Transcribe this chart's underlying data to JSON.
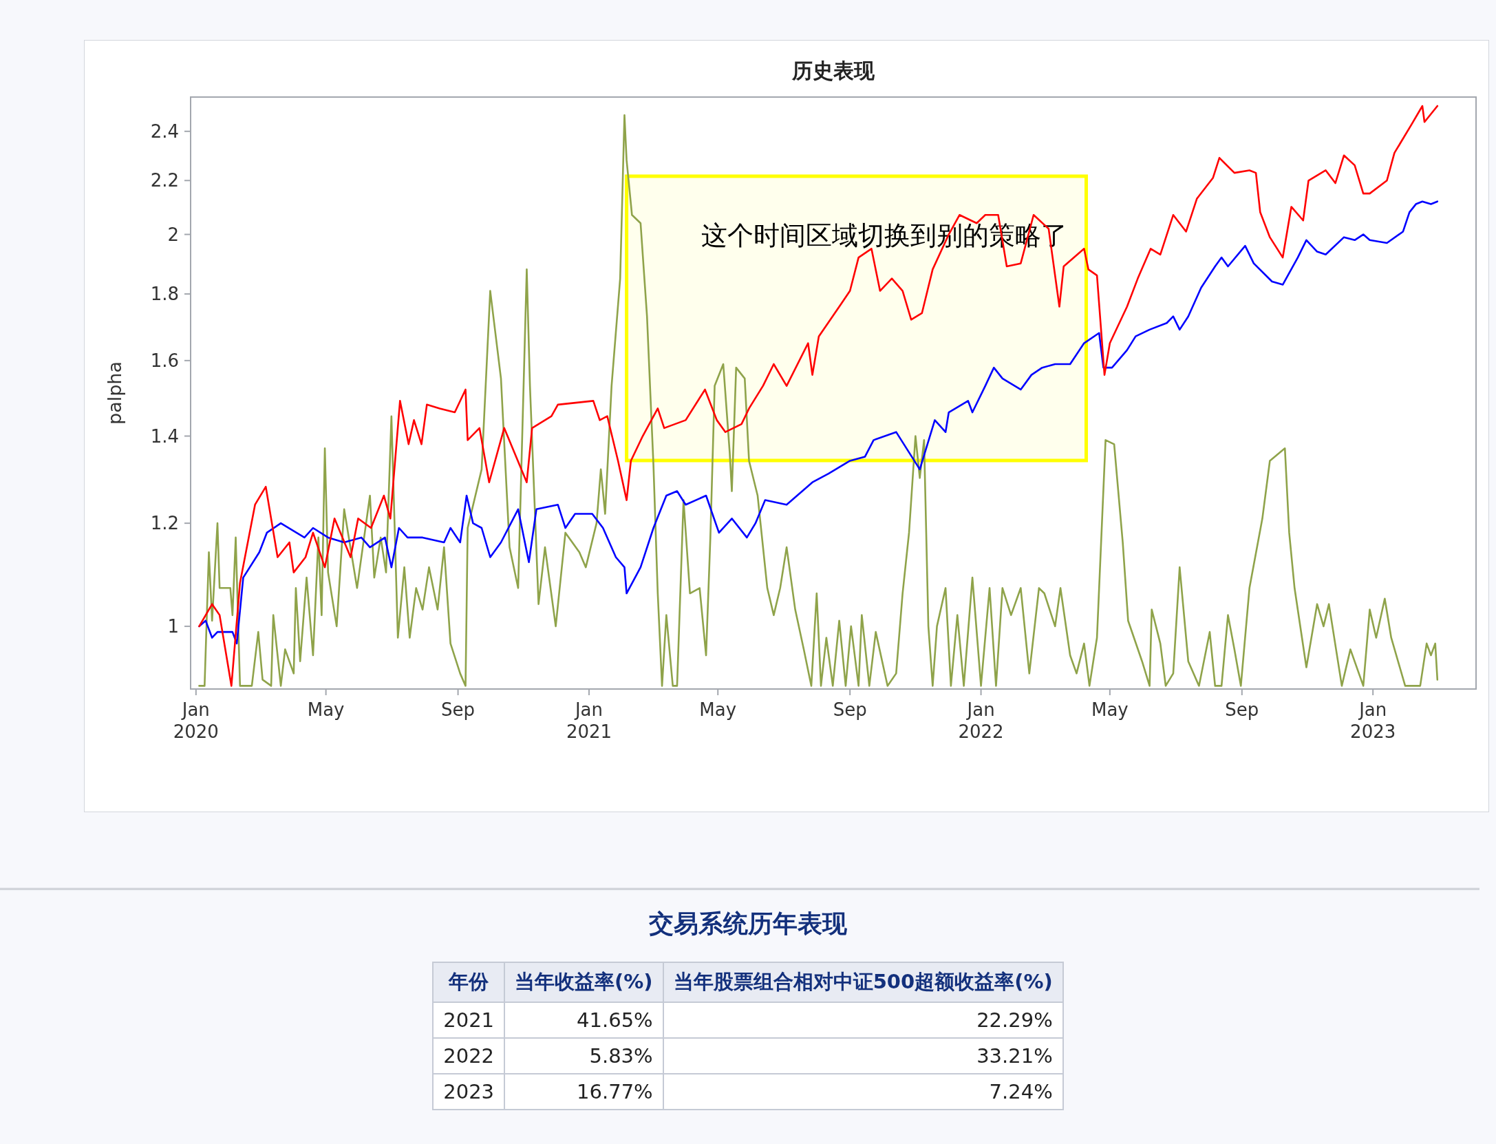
{
  "chart_data": [
    {
      "type": "line",
      "title": "历史表现",
      "ylabel": "palpha",
      "log": "y",
      "xlim": [
        "2019-12-27",
        "2023-04-07"
      ],
      "xticks": [
        {
          "value": "2020-01-01",
          "label": "Jan 2020"
        },
        {
          "value": "2020-05-01",
          "label": "May"
        },
        {
          "value": "2020-09-01",
          "label": "Sep"
        },
        {
          "value": "2021-01-01",
          "label": "Jan 2021"
        },
        {
          "value": "2021-05-01",
          "label": "May"
        },
        {
          "value": "2021-09-01",
          "label": "Sep"
        },
        {
          "value": "2022-01-01",
          "label": "Jan 2022"
        },
        {
          "value": "2022-05-01",
          "label": "May"
        },
        {
          "value": "2022-09-01",
          "label": "Sep"
        },
        {
          "value": "2023-01-01",
          "label": "Jan 2023"
        }
      ],
      "ylim": [
        0.895,
        2.55
      ],
      "yticks": [
        1,
        1.2,
        1.4,
        1.6,
        1.8,
        2,
        2.2,
        2.4
      ],
      "line_style": "solid",
      "bands": [
        {
          "axis": "x",
          "from": "2021-02-05",
          "to": "2022-04-09",
          "label": "这个时间区域切换到别的策略了",
          "color": "#ffff00"
        }
      ],
      "series": [
        {
          "color": "#8fa34a",
          "x": [
            "2020-01-04",
            "2020-01-09",
            "2020-01-13",
            "2020-01-16",
            "2020-01-21",
            "2020-01-23",
            "2020-02-02",
            "2020-02-04",
            "2020-02-07",
            "2020-02-11",
            "2020-02-22",
            "2020-02-28",
            "2020-03-03",
            "2020-03-11",
            "2020-03-13",
            "2020-03-20",
            "2020-03-24",
            "2020-04-01",
            "2020-04-03",
            "2020-04-07",
            "2020-04-13",
            "2020-04-19",
            "2020-04-24",
            "2020-04-27",
            "2020-04-30",
            "2020-05-03",
            "2020-05-11",
            "2020-05-18",
            "2020-05-30",
            "2020-06-11",
            "2020-06-15",
            "2020-06-21",
            "2020-06-26",
            "2020-07-01",
            "2020-07-07",
            "2020-07-13",
            "2020-07-18",
            "2020-07-24",
            "2020-07-30",
            "2020-08-05",
            "2020-08-13",
            "2020-08-19",
            "2020-08-25",
            "2020-09-03",
            "2020-09-08",
            "2020-09-10",
            "2020-09-23",
            "2020-10-01",
            "2020-10-11",
            "2020-10-19",
            "2020-10-27",
            "2020-10-31",
            "2020-11-04",
            "2020-11-07",
            "2020-11-15",
            "2020-11-21",
            "2020-12-01",
            "2020-12-10",
            "2020-12-23",
            "2020-12-29",
            "2021-01-08",
            "2021-01-12",
            "2021-01-16",
            "2021-01-22",
            "2021-01-30",
            "2021-02-03",
            "2021-02-05",
            "2021-02-10",
            "2021-02-18",
            "2021-02-24",
            "2021-03-02",
            "2021-03-06",
            "2021-03-10",
            "2021-03-14",
            "2021-03-20",
            "2021-03-24",
            "2021-03-30",
            "2021-04-05",
            "2021-04-14",
            "2021-04-20",
            "2021-04-24",
            "2021-04-28",
            "2021-05-06",
            "2021-05-12",
            "2021-05-14",
            "2021-05-18",
            "2021-05-26",
            "2021-05-30",
            "2021-06-07",
            "2021-06-16",
            "2021-06-22",
            "2021-06-28",
            "2021-07-04",
            "2021-07-12",
            "2021-07-20",
            "2021-07-27",
            "2021-08-01",
            "2021-08-05",
            "2021-08-10",
            "2021-08-16",
            "2021-08-22",
            "2021-08-28",
            "2021-09-02",
            "2021-09-09",
            "2021-09-12",
            "2021-09-19",
            "2021-09-25",
            "2021-10-06",
            "2021-10-14",
            "2021-10-20",
            "2021-10-26",
            "2021-11-01",
            "2021-11-05",
            "2021-11-09",
            "2021-11-13",
            "2021-11-17",
            "2021-11-21",
            "2021-11-29",
            "2021-12-04",
            "2021-12-10",
            "2021-12-16",
            "2021-12-24",
            "2022-01-01",
            "2022-01-09",
            "2022-01-15",
            "2022-01-21",
            "2022-01-29",
            "2022-02-07",
            "2022-02-15",
            "2022-02-24",
            "2022-03-01",
            "2022-03-11",
            "2022-03-16",
            "2022-03-25",
            "2022-03-31",
            "2022-04-07",
            "2022-04-12",
            "2022-04-19",
            "2022-04-27",
            "2022-05-05",
            "2022-05-13",
            "2022-05-18",
            "2022-05-31",
            "2022-06-07",
            "2022-06-09",
            "2022-06-17",
            "2022-06-22",
            "2022-06-29",
            "2022-07-05",
            "2022-07-13",
            "2022-07-23",
            "2022-08-02",
            "2022-08-07",
            "2022-08-13",
            "2022-08-19",
            "2022-08-25",
            "2022-08-31",
            "2022-09-08",
            "2022-09-20",
            "2022-09-27",
            "2022-10-11",
            "2022-10-15",
            "2022-10-20",
            "2022-10-31",
            "2022-11-10",
            "2022-11-16",
            "2022-11-21",
            "2022-12-03",
            "2022-12-11",
            "2022-12-23",
            "2022-12-29",
            "2023-01-04",
            "2023-01-12",
            "2023-01-18",
            "2023-01-31",
            "2023-02-14",
            "2023-02-20",
            "2023-02-24",
            "2023-02-28",
            "2023-03-02"
          ],
          "values": [
            0.9,
            0.9,
            1.14,
            1.01,
            1.2,
            1.07,
            1.07,
            1.02,
            1.17,
            0.9,
            0.9,
            0.99,
            0.91,
            0.9,
            1.02,
            0.9,
            0.96,
            0.92,
            1.07,
            0.94,
            1.09,
            0.95,
            1.17,
            1.02,
            1.37,
            1.1,
            1.0,
            1.23,
            1.07,
            1.26,
            1.09,
            1.17,
            1.1,
            1.45,
            0.98,
            1.11,
            0.98,
            1.07,
            1.03,
            1.11,
            1.03,
            1.15,
            0.97,
            0.92,
            0.9,
            1.19,
            1.32,
            1.81,
            1.55,
            1.15,
            1.07,
            1.42,
            1.88,
            1.53,
            1.04,
            1.15,
            1.0,
            1.18,
            1.14,
            1.11,
            1.2,
            1.32,
            1.22,
            1.53,
            1.85,
            2.47,
            2.28,
            2.07,
            2.04,
            1.73,
            1.33,
            1.06,
            0.9,
            1.02,
            0.9,
            0.9,
            1.25,
            1.06,
            1.07,
            0.95,
            1.17,
            1.53,
            1.59,
            1.36,
            1.27,
            1.58,
            1.55,
            1.34,
            1.26,
            1.07,
            1.02,
            1.07,
            1.15,
            1.03,
            0.96,
            0.9,
            1.06,
            0.9,
            0.98,
            0.9,
            1.01,
            0.9,
            1.0,
            0.9,
            1.02,
            0.9,
            0.99,
            0.9,
            0.92,
            1.06,
            1.18,
            1.4,
            1.3,
            1.39,
            1.0,
            0.9,
            1.0,
            1.07,
            0.9,
            1.02,
            0.9,
            1.09,
            0.9,
            1.07,
            0.9,
            1.07,
            1.02,
            1.07,
            0.92,
            1.07,
            1.06,
            1.0,
            1.07,
            0.95,
            0.92,
            0.97,
            0.9,
            0.98,
            1.39,
            1.38,
            1.16,
            1.01,
            0.94,
            0.9,
            1.03,
            0.97,
            0.9,
            0.92,
            1.11,
            0.94,
            0.9,
            0.99,
            0.9,
            0.9,
            1.02,
            0.96,
            0.9,
            1.07,
            1.21,
            1.34,
            1.37,
            1.18,
            1.07,
            0.93,
            1.04,
            1.0,
            1.04,
            0.9,
            0.96,
            0.9,
            1.03,
            0.98,
            1.05,
            0.98,
            0.9,
            0.9,
            0.97,
            0.95,
            0.97,
            0.91
          ]
        },
        {
          "color": "#0000ff",
          "x": [
            "2020-01-04",
            "2020-01-10",
            "2020-01-16",
            "2020-01-21",
            "2020-02-04",
            "2020-02-08",
            "2020-02-14",
            "2020-02-29",
            "2020-03-07",
            "2020-03-20",
            "2020-04-11",
            "2020-04-19",
            "2020-05-03",
            "2020-05-18",
            "2020-06-03",
            "2020-06-11",
            "2020-06-25",
            "2020-07-01",
            "2020-07-08",
            "2020-07-16",
            "2020-07-30",
            "2020-08-19",
            "2020-08-25",
            "2020-09-03",
            "2020-09-09",
            "2020-09-15",
            "2020-09-23",
            "2020-10-01",
            "2020-10-11",
            "2020-10-27",
            "2020-11-06",
            "2020-11-13",
            "2020-12-03",
            "2020-12-10",
            "2020-12-19",
            "2021-01-04",
            "2021-01-14",
            "2021-01-26",
            "2021-02-03",
            "2021-02-05",
            "2021-02-18",
            "2021-03-02",
            "2021-03-14",
            "2021-03-24",
            "2021-04-01",
            "2021-04-20",
            "2021-05-02",
            "2021-05-14",
            "2021-05-28",
            "2021-06-05",
            "2021-06-14",
            "2021-07-04",
            "2021-07-28",
            "2021-08-12",
            "2021-09-01",
            "2021-09-15",
            "2021-09-23",
            "2021-10-14",
            "2021-11-05",
            "2021-11-19",
            "2021-11-29",
            "2021-12-02",
            "2021-12-20",
            "2021-12-24",
            "2022-01-05",
            "2022-01-13",
            "2022-01-21",
            "2022-02-07",
            "2022-02-17",
            "2022-02-27",
            "2022-03-11",
            "2022-03-25",
            "2022-04-07",
            "2022-04-21",
            "2022-04-25",
            "2022-05-03",
            "2022-05-17",
            "2022-05-25",
            "2022-06-07",
            "2022-06-23",
            "2022-06-29",
            "2022-07-05",
            "2022-07-13",
            "2022-07-25",
            "2022-08-07",
            "2022-08-13",
            "2022-08-19",
            "2022-09-04",
            "2022-09-12",
            "2022-09-29",
            "2022-10-09",
            "2022-10-23",
            "2022-10-31",
            "2022-11-10",
            "2022-11-18",
            "2022-12-05",
            "2022-12-15",
            "2022-12-23",
            "2022-12-29",
            "2023-01-14",
            "2023-01-29",
            "2023-02-04",
            "2023-02-10",
            "2023-02-16",
            "2023-02-24",
            "2023-03-02"
          ],
          "values": [
            1.0,
            1.01,
            0.98,
            0.99,
            0.99,
            0.97,
            1.09,
            1.14,
            1.18,
            1.2,
            1.17,
            1.19,
            1.17,
            1.16,
            1.17,
            1.15,
            1.17,
            1.11,
            1.19,
            1.17,
            1.17,
            1.16,
            1.19,
            1.16,
            1.26,
            1.2,
            1.19,
            1.13,
            1.16,
            1.23,
            1.12,
            1.23,
            1.24,
            1.19,
            1.22,
            1.22,
            1.19,
            1.13,
            1.11,
            1.06,
            1.11,
            1.19,
            1.26,
            1.27,
            1.24,
            1.26,
            1.18,
            1.21,
            1.17,
            1.2,
            1.25,
            1.24,
            1.29,
            1.31,
            1.34,
            1.35,
            1.39,
            1.41,
            1.32,
            1.44,
            1.41,
            1.46,
            1.49,
            1.46,
            1.53,
            1.58,
            1.55,
            1.52,
            1.56,
            1.58,
            1.59,
            1.59,
            1.65,
            1.68,
            1.58,
            1.58,
            1.63,
            1.67,
            1.69,
            1.71,
            1.73,
            1.69,
            1.73,
            1.82,
            1.89,
            1.92,
            1.89,
            1.96,
            1.9,
            1.84,
            1.83,
            1.92,
            1.98,
            1.94,
            1.93,
            1.99,
            1.98,
            2.0,
            1.98,
            1.97,
            2.01,
            2.08,
            2.11,
            2.12,
            2.11,
            2.12
          ]
        },
        {
          "color": "#ff0000",
          "x": [
            "2020-01-04",
            "2020-01-16",
            "2020-01-23",
            "2020-02-03",
            "2020-02-11",
            "2020-02-25",
            "2020-03-06",
            "2020-03-17",
            "2020-03-28",
            "2020-04-01",
            "2020-04-12",
            "2020-04-19",
            "2020-04-30",
            "2020-05-09",
            "2020-05-24",
            "2020-05-31",
            "2020-06-12",
            "2020-06-24",
            "2020-06-30",
            "2020-07-09",
            "2020-07-17",
            "2020-07-22",
            "2020-07-29",
            "2020-08-03",
            "2020-08-15",
            "2020-08-29",
            "2020-09-08",
            "2020-09-10",
            "2020-09-21",
            "2020-09-30",
            "2020-10-14",
            "2020-11-04",
            "2020-11-09",
            "2020-11-27",
            "2020-12-03",
            "2021-01-05",
            "2021-01-11",
            "2021-01-18",
            "2021-01-28",
            "2021-02-05",
            "2021-02-09",
            "2021-02-20",
            "2021-03-06",
            "2021-03-12",
            "2021-04-01",
            "2021-04-19",
            "2021-04-30",
            "2021-05-08",
            "2021-05-23",
            "2021-05-30",
            "2021-06-12",
            "2021-06-22",
            "2021-07-04",
            "2021-07-24",
            "2021-07-28",
            "2021-08-03",
            "2021-08-24",
            "2021-09-01",
            "2021-09-09",
            "2021-09-21",
            "2021-09-29",
            "2021-10-10",
            "2021-10-20",
            "2021-10-28",
            "2021-11-07",
            "2021-11-17",
            "2021-12-02",
            "2021-12-12",
            "2021-12-28",
            "2022-01-05",
            "2022-01-17",
            "2022-01-25",
            "2022-02-07",
            "2022-02-19",
            "2022-03-05",
            "2022-03-15",
            "2022-03-19",
            "2022-04-07",
            "2022-04-11",
            "2022-04-19",
            "2022-04-26",
            "2022-05-01",
            "2022-05-17",
            "2022-05-27",
            "2022-06-08",
            "2022-06-17",
            "2022-06-29",
            "2022-07-11",
            "2022-07-21",
            "2022-08-05",
            "2022-08-11",
            "2022-08-25",
            "2022-09-08",
            "2022-09-14",
            "2022-09-18",
            "2022-09-27",
            "2022-10-09",
            "2022-10-17",
            "2022-10-28",
            "2022-11-02",
            "2022-11-18",
            "2022-11-27",
            "2022-12-05",
            "2022-12-15",
            "2022-12-23",
            "2022-12-29",
            "2023-01-14",
            "2023-01-21",
            "2023-02-06",
            "2023-02-16",
            "2023-02-18",
            "2023-03-02"
          ],
          "values": [
            1.0,
            1.04,
            1.02,
            0.9,
            1.08,
            1.24,
            1.28,
            1.13,
            1.16,
            1.1,
            1.13,
            1.18,
            1.11,
            1.21,
            1.13,
            1.21,
            1.19,
            1.26,
            1.21,
            1.49,
            1.38,
            1.44,
            1.38,
            1.48,
            1.47,
            1.46,
            1.52,
            1.39,
            1.42,
            1.29,
            1.42,
            1.29,
            1.42,
            1.45,
            1.48,
            1.49,
            1.44,
            1.45,
            1.34,
            1.25,
            1.34,
            1.4,
            1.47,
            1.42,
            1.44,
            1.52,
            1.44,
            1.41,
            1.43,
            1.47,
            1.53,
            1.59,
            1.53,
            1.65,
            1.56,
            1.67,
            1.77,
            1.81,
            1.92,
            1.95,
            1.81,
            1.85,
            1.81,
            1.72,
            1.74,
            1.88,
            2.0,
            2.07,
            2.04,
            2.07,
            2.07,
            1.89,
            1.9,
            2.07,
            2.02,
            1.76,
            1.89,
            1.95,
            1.88,
            1.86,
            1.56,
            1.65,
            1.76,
            1.85,
            1.95,
            1.93,
            2.07,
            2.01,
            2.13,
            2.21,
            2.29,
            2.23,
            2.24,
            2.23,
            2.08,
            1.99,
            1.92,
            2.1,
            2.05,
            2.2,
            2.24,
            2.19,
            2.3,
            2.26,
            2.15,
            2.15,
            2.2,
            2.31,
            2.43,
            2.51,
            2.44,
            2.51
          ]
        }
      ]
    },
    {
      "type": "other",
      "title": "交易系统历年表现",
      "annotations": [
        "年份",
        "当年收益率(%)",
        "当年股票组合相对中证500超额收益率(%)",
        "2021",
        "41.65%",
        "22.29%",
        "2022",
        "5.83%",
        "33.21%",
        "2023",
        "16.77%",
        "7.24%"
      ]
    }
  ]
}
